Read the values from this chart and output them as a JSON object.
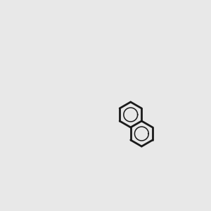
{
  "bg": "#e8e8e8",
  "bc": "#1a1a1a",
  "oc": "#cc0000",
  "nc": "#0000cc",
  "sc": "#b8b800",
  "hc": "#2e8b8b",
  "lw": 2.0,
  "lw_thin": 1.2,
  "fs": 9
}
